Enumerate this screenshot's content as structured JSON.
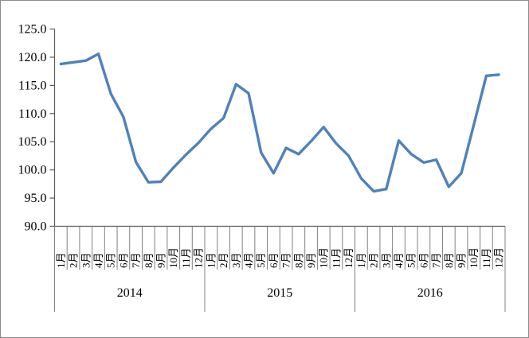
{
  "window": {
    "background": "#ffffff",
    "border_color": "#8c8c8c"
  },
  "chart_data": {
    "type": "line",
    "title": "",
    "xlabel": "",
    "ylabel": "",
    "legend": "none",
    "grid": "off",
    "ylim": [
      90,
      125
    ],
    "ytick_step": 5,
    "y_tick_labels": [
      "125.0",
      "120.0",
      "115.0",
      "110.0",
      "105.0",
      "100.0",
      "95.0",
      "90.0"
    ],
    "month_labels": [
      "1月",
      "2月",
      "3月",
      "4月",
      "5月",
      "6月",
      "7月",
      "8月",
      "9月",
      "10月",
      "11月",
      "12月"
    ],
    "year_groups": [
      {
        "label": "2014",
        "months": 12
      },
      {
        "label": "2015",
        "months": 12
      },
      {
        "label": "2016",
        "months": 12
      }
    ],
    "series": [
      {
        "name": "index-line",
        "color": "#4F81BD",
        "values": [
          118.8,
          119.1,
          119.4,
          120.6,
          113.5,
          109.4,
          101.4,
          97.8,
          97.9,
          100.4,
          102.7,
          104.8,
          107.3,
          109.2,
          115.2,
          113.6,
          103.1,
          99.4,
          103.9,
          102.8,
          105.1,
          107.6,
          104.7,
          102.5,
          98.5,
          96.2,
          96.6,
          105.2,
          102.8,
          101.3,
          101.8,
          97.0,
          99.4,
          108.0,
          116.7,
          116.9
        ]
      }
    ],
    "axis_color": "#595959",
    "tick_line_color": "#808080",
    "text_color": "#000000"
  }
}
